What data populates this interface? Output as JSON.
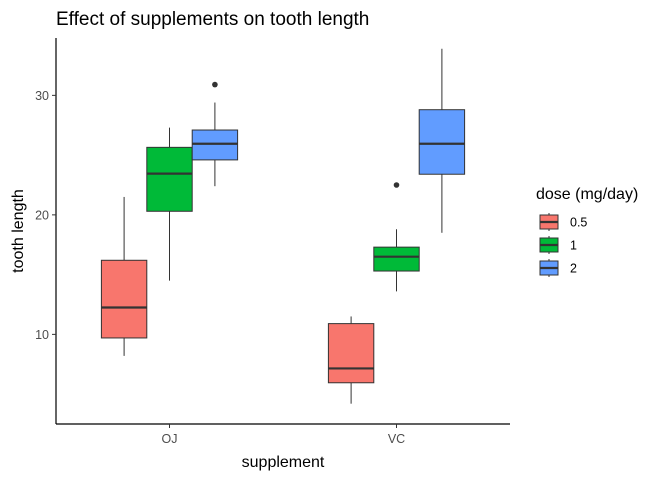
{
  "chart_data": {
    "type": "boxplot",
    "title": "Effect of supplements on tooth length",
    "xlabel": "supplement",
    "ylabel": "tooth length",
    "categories": [
      "OJ",
      "VC"
    ],
    "yticks": [
      10,
      20,
      30
    ],
    "ylim": [
      2.5,
      34.8
    ],
    "grid": false,
    "legend": {
      "title": "dose (mg/day)",
      "position": "right",
      "entries": [
        "0.5",
        "1",
        "2"
      ]
    },
    "series": [
      {
        "name": "0.5",
        "color": "#F8766D",
        "boxes": [
          {
            "category": "OJ",
            "min": 8.2,
            "q1": 9.7,
            "median": 12.25,
            "q3": 16.2,
            "max": 21.5,
            "outliers": []
          },
          {
            "category": "VC",
            "min": 4.2,
            "q1": 5.95,
            "median": 7.15,
            "q3": 10.9,
            "max": 11.5,
            "outliers": []
          }
        ]
      },
      {
        "name": "1",
        "color": "#00BA38",
        "boxes": [
          {
            "category": "OJ",
            "min": 14.5,
            "q1": 20.3,
            "median": 23.45,
            "q3": 25.65,
            "max": 27.3,
            "outliers": []
          },
          {
            "category": "VC",
            "min": 13.6,
            "q1": 15.3,
            "median": 16.5,
            "q3": 17.3,
            "max": 18.8,
            "outliers": [
              22.5
            ]
          }
        ]
      },
      {
        "name": "2",
        "color": "#619CFF",
        "boxes": [
          {
            "category": "OJ",
            "min": 22.4,
            "q1": 24.6,
            "median": 25.95,
            "q3": 27.1,
            "max": 29.4,
            "outliers": [
              30.9
            ]
          },
          {
            "category": "VC",
            "min": 18.5,
            "q1": 23.4,
            "median": 25.95,
            "q3": 28.8,
            "max": 33.9,
            "outliers": []
          }
        ]
      }
    ]
  }
}
